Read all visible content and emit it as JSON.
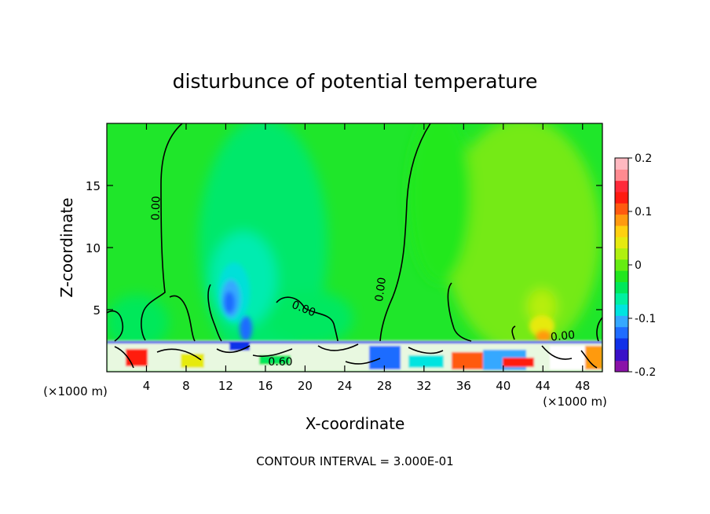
{
  "chart_data": {
    "type": "heatmap",
    "title": "disturbunce of potential temperature",
    "xlabel": "X-coordinate",
    "ylabel": "Z-coordinate",
    "x_unit_left": "(×1000 m)",
    "x_unit_right": "(×1000 m)",
    "xlim": [
      0,
      50
    ],
    "ylim": [
      0,
      20
    ],
    "x_ticks": [
      4,
      8,
      12,
      16,
      20,
      24,
      28,
      32,
      36,
      40,
      44,
      48
    ],
    "y_ticks": [
      5,
      10,
      15
    ],
    "colorbar": {
      "range": [
        -0.2,
        0.2
      ],
      "tick_values": [
        0.2,
        0.1,
        0,
        -0.1,
        -0.2
      ],
      "tick_labels": [
        "0.2",
        "0.1",
        "0",
        "-0.1",
        "-0.2"
      ],
      "colors": [
        "#8a12a8",
        "#3a10c8",
        "#1030e8",
        "#1f6cff",
        "#35a8ff",
        "#00e4e0",
        "#00f0a0",
        "#00e85a",
        "#22e61e",
        "#66ec12",
        "#b0f010",
        "#e6ea10",
        "#ffd010",
        "#ff9a10",
        "#ff5a10",
        "#ff1a10",
        "#ff2a3a",
        "#ff8a90",
        "#ffb8c0"
      ]
    },
    "contour_labels": [
      "0.00",
      "0.00",
      "0.00",
      "0.00",
      "0.60"
    ],
    "annotation": "CONTOUR INTERVAL = 3.000E-01"
  }
}
